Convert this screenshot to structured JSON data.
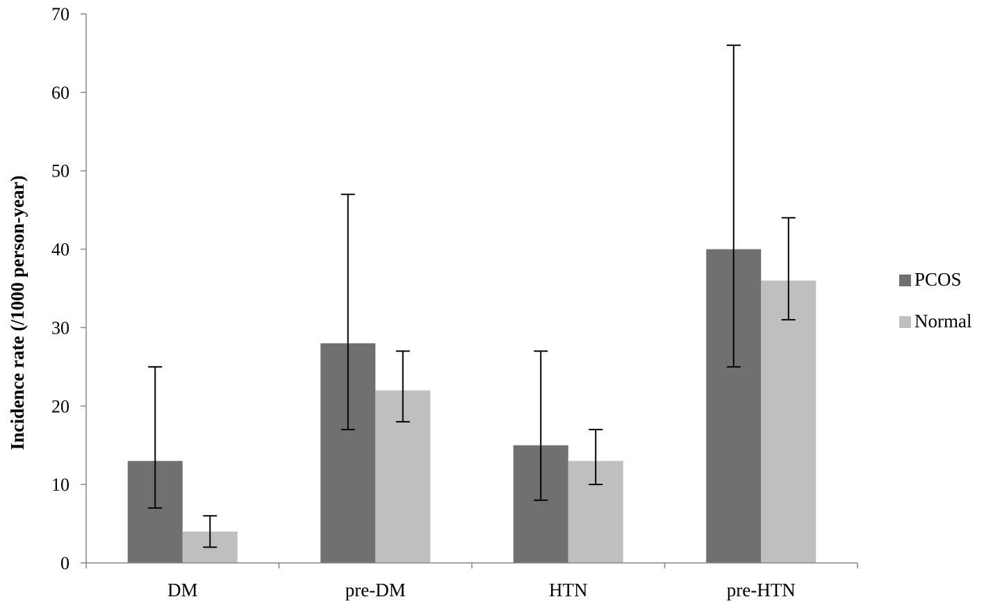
{
  "chart_data": {
    "type": "bar",
    "title": "",
    "xlabel": "",
    "ylabel": "Incidence rate (/1000 person-year)",
    "ylim": [
      0,
      70
    ],
    "yticks": [
      0,
      10,
      20,
      30,
      40,
      50,
      60,
      70
    ],
    "categories": [
      "DM",
      "pre-DM",
      "HTN",
      "pre-HTN"
    ],
    "series": [
      {
        "name": "PCOS",
        "color": "#707070",
        "values": [
          13,
          28,
          15,
          40
        ],
        "error_low": [
          7,
          17,
          8,
          25
        ],
        "error_high": [
          25,
          47,
          27,
          66
        ]
      },
      {
        "name": "Normal",
        "color": "#bfbfbf",
        "values": [
          4,
          22,
          13,
          36
        ],
        "error_low": [
          2,
          18,
          10,
          31
        ],
        "error_high": [
          6,
          27,
          17,
          44
        ]
      }
    ],
    "grid": false,
    "legend_position": "right"
  }
}
